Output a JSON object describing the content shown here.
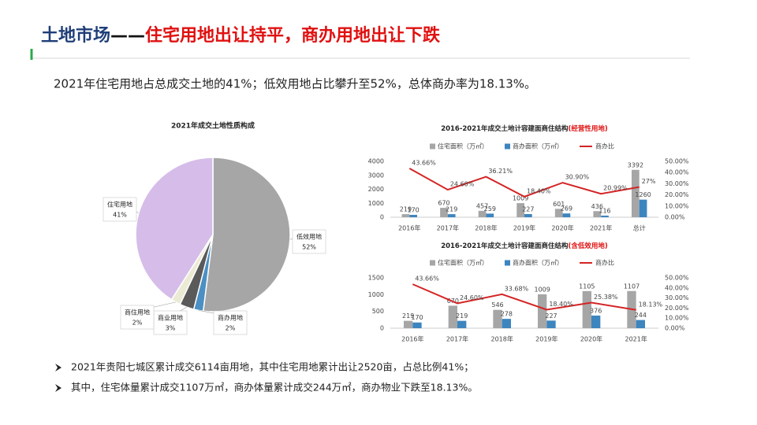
{
  "header": {
    "title_part1": "土地市场",
    "title_part2": "——",
    "title_part3": "住宅用地出让持平，商办用地出让下跌",
    "subtitle": "2021年住宅用地占总成交土地的41%；低效用地占比攀升至52%，总体商办率为18.13%。"
  },
  "chart_data": [
    {
      "type": "pie",
      "title": "2021年成交土地性质构成",
      "categories": [
        "低效用地",
        "商办用地",
        "商业用地",
        "商住用地",
        "住宅用地"
      ],
      "values": [
        52,
        2,
        3,
        2,
        41
      ],
      "value_labels": [
        "52%",
        "2%",
        "3%",
        "2%",
        "41%"
      ],
      "colors": [
        "#a6a6a6",
        "#4b8fc3",
        "#5a5a5a",
        "#ebebd5",
        "#d6bde9"
      ]
    },
    {
      "type": "combo",
      "title": "2016-2021年成交土地计容建面商住结构",
      "title_note": "(经营性用地)",
      "categories": [
        "2016年",
        "2017年",
        "2018年",
        "2019年",
        "2020年",
        "2021年",
        "总计"
      ],
      "series": [
        {
          "name": "住宅面积（万㎡）",
          "color": "#a6a6a6",
          "values": [
            219,
            670,
            457,
            1009,
            601,
            436,
            3392
          ]
        },
        {
          "name": "商办面积（万㎡）",
          "color": "#3d85bf",
          "values": [
            170,
            219,
            259,
            227,
            269,
            116,
            1260
          ]
        },
        {
          "name": "商办比",
          "color": "#d42424",
          "axis": "y2",
          "values": [
            43.66,
            24.6,
            36.21,
            18.4,
            30.9,
            20.99,
            27
          ],
          "value_labels": [
            "43.66%",
            "24.60%",
            "36.21%",
            "18.40%",
            "30.90%",
            "20.99%",
            "27%"
          ]
        }
      ],
      "ylim": [
        0,
        4000
      ],
      "yticks": [
        0,
        1000,
        2000,
        3000,
        4000
      ],
      "y2lim": [
        0,
        50
      ],
      "y2ticks": [
        {
          "value": 0,
          "label": "0.00%"
        },
        {
          "value": 10,
          "label": "10.00%"
        },
        {
          "value": 20,
          "label": "20.00%"
        },
        {
          "value": 30,
          "label": "30.00%"
        },
        {
          "value": 40,
          "label": "40.00%"
        },
        {
          "value": 50,
          "label": "50.00%"
        }
      ]
    },
    {
      "type": "combo",
      "title": "2016-2021年成交土地计容建面商住结构",
      "title_note": "(含低效用地)",
      "categories": [
        "2016年",
        "2017年",
        "2018年",
        "2019年",
        "2020年",
        "2021年"
      ],
      "series": [
        {
          "name": "住宅面积（万㎡）",
          "color": "#a6a6a6",
          "values": [
            219,
            670,
            546,
            1009,
            1105,
            1107
          ]
        },
        {
          "name": "商办面积（万㎡）",
          "color": "#3d85bf",
          "values": [
            170,
            219,
            278,
            227,
            376,
            244
          ]
        },
        {
          "name": "商办比",
          "color": "#d42424",
          "axis": "y2",
          "values": [
            43.66,
            24.6,
            33.68,
            18.4,
            25.38,
            18.13
          ],
          "value_labels": [
            "43.66%",
            "24.60%",
            "33.68%",
            "18.40%",
            "25.38%",
            "18.13%"
          ]
        }
      ],
      "ylim": [
        0,
        1500
      ],
      "yticks": [
        0,
        500,
        1000,
        1500
      ],
      "y2lim": [
        0,
        50
      ],
      "y2ticks": [
        {
          "value": 0,
          "label": "0.00%"
        },
        {
          "value": 10,
          "label": "10.00%"
        },
        {
          "value": 20,
          "label": "20.00%"
        },
        {
          "value": 30,
          "label": "30.00%"
        },
        {
          "value": 40,
          "label": "40.00%"
        },
        {
          "value": 50,
          "label": "50.00%"
        }
      ]
    }
  ],
  "bullets": [
    "2021年贵阳七城区累计成交6114亩用地，其中住宅用地累计出让2520亩，占总比例41%；",
    "其中，住宅体量累计成交1107万㎡，商办体量累计成交244万㎡，商办物业下跌至18.13%。"
  ]
}
